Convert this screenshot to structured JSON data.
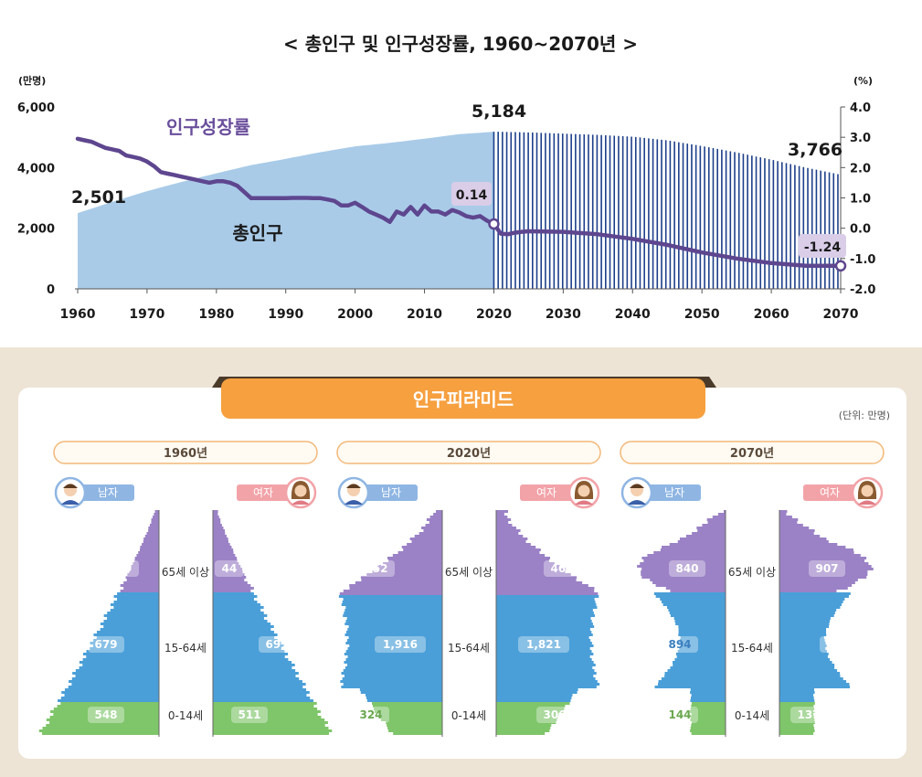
{
  "chart_data": [
    {
      "type": "area",
      "title": "< 총인구 및 인구성장률, 1960~2070년 >",
      "ylabel_left": "(만명)",
      "ylabel_right": "(%)",
      "x_ticks": [
        "1960",
        "1970",
        "1980",
        "1990",
        "2000",
        "2010",
        "2020",
        "2030",
        "2040",
        "2050",
        "2060",
        "2070"
      ],
      "y_left_ticks": [
        "6,000",
        "4,000",
        "2,000",
        "0"
      ],
      "y_right_ticks": [
        "4.0",
        "3.0",
        "2.0",
        "1.0",
        "0.0",
        "-1.0",
        "-2.0"
      ],
      "ylim_left": [
        0,
        6000
      ],
      "ylim_right": [
        -2.0,
        4.0
      ],
      "projection_start": 2020,
      "series": [
        {
          "name": "총인구",
          "axis": "left",
          "x": [
            1960,
            1965,
            1970,
            1975,
            1980,
            1985,
            1990,
            1995,
            2000,
            2005,
            2010,
            2015,
            2020,
            2025,
            2030,
            2035,
            2040,
            2045,
            2050,
            2055,
            2060,
            2065,
            2070
          ],
          "values": [
            2501,
            2870,
            3224,
            3528,
            3812,
            4081,
            4287,
            4509,
            4701,
            4814,
            4955,
            5101,
            5184,
            5160,
            5120,
            5080,
            5019,
            4900,
            4711,
            4500,
            4262,
            4000,
            3766
          ]
        },
        {
          "name": "인구성장률",
          "axis": "right",
          "x": [
            1960,
            1961,
            1962,
            1963,
            1964,
            1965,
            1966,
            1967,
            1968,
            1969,
            1970,
            1971,
            1972,
            1973,
            1974,
            1975,
            1976,
            1977,
            1978,
            1979,
            1980,
            1981,
            1982,
            1983,
            1984,
            1985,
            1986,
            1987,
            1988,
            1989,
            1990,
            1991,
            1992,
            1993,
            1994,
            1995,
            1996,
            1997,
            1998,
            1999,
            2000,
            2001,
            2002,
            2003,
            2004,
            2005,
            2006,
            2007,
            2008,
            2009,
            2010,
            2011,
            2012,
            2013,
            2014,
            2015,
            2016,
            2017,
            2018,
            2019,
            2020,
            2021,
            2022,
            2023,
            2024,
            2025,
            2030,
            2035,
            2040,
            2045,
            2050,
            2055,
            2060,
            2065,
            2070
          ],
          "values": [
            2.95,
            2.9,
            2.85,
            2.75,
            2.65,
            2.6,
            2.55,
            2.4,
            2.35,
            2.3,
            2.2,
            2.05,
            1.85,
            1.8,
            1.75,
            1.7,
            1.65,
            1.6,
            1.55,
            1.5,
            1.55,
            1.55,
            1.5,
            1.4,
            1.2,
            0.99,
            0.99,
            0.99,
            0.99,
            0.99,
            0.99,
            1.0,
            1.0,
            1.0,
            0.99,
            0.99,
            0.95,
            0.9,
            0.75,
            0.75,
            0.84,
            0.7,
            0.55,
            0.45,
            0.35,
            0.21,
            0.55,
            0.45,
            0.7,
            0.45,
            0.75,
            0.55,
            0.55,
            0.45,
            0.6,
            0.52,
            0.4,
            0.35,
            0.4,
            0.25,
            0.14,
            -0.18,
            -0.2,
            -0.15,
            -0.12,
            -0.1,
            -0.12,
            -0.2,
            -0.35,
            -0.55,
            -0.8,
            -1.0,
            -1.15,
            -1.24,
            -1.24
          ]
        }
      ],
      "annotations": {
        "pop_1960": "2,501",
        "pop_2020": "5,184",
        "pop_2070": "3,766",
        "rate_2020": "0.14",
        "rate_2070": "-1.24"
      }
    },
    {
      "type": "bar",
      "title": "인구피라미드",
      "unit": "(단위: 만명)",
      "male_label": "남자",
      "female_label": "여자",
      "age_groups": [
        "65세 이상",
        "15-64세",
        "0-14세"
      ],
      "colors": {
        "elderly": "#9b82c6",
        "working": "#4a9fd8",
        "young": "#7fc56a"
      },
      "pyramids": [
        {
          "year": "1960년",
          "male": [
            29,
            679,
            548
          ],
          "male_labels": [
            "29",
            "679",
            "548"
          ],
          "female": [
            44,
            691,
            511
          ],
          "female_labels": [
            "44",
            "691",
            "511"
          ]
        },
        {
          "year": "2020년",
          "male": [
            352,
            1916,
            324
          ],
          "male_labels": [
            "352",
            "1,916",
            "324"
          ],
          "female": [
            463,
            1821,
            306
          ],
          "female_labels": [
            "463",
            "1,821",
            "306"
          ]
        },
        {
          "year": "2070년",
          "male": [
            840,
            894,
            144
          ],
          "male_labels": [
            "840",
            "894",
            "144"
          ],
          "female": [
            907,
            842,
            137
          ],
          "female_labels": [
            "907",
            "842",
            "137"
          ]
        }
      ]
    }
  ]
}
